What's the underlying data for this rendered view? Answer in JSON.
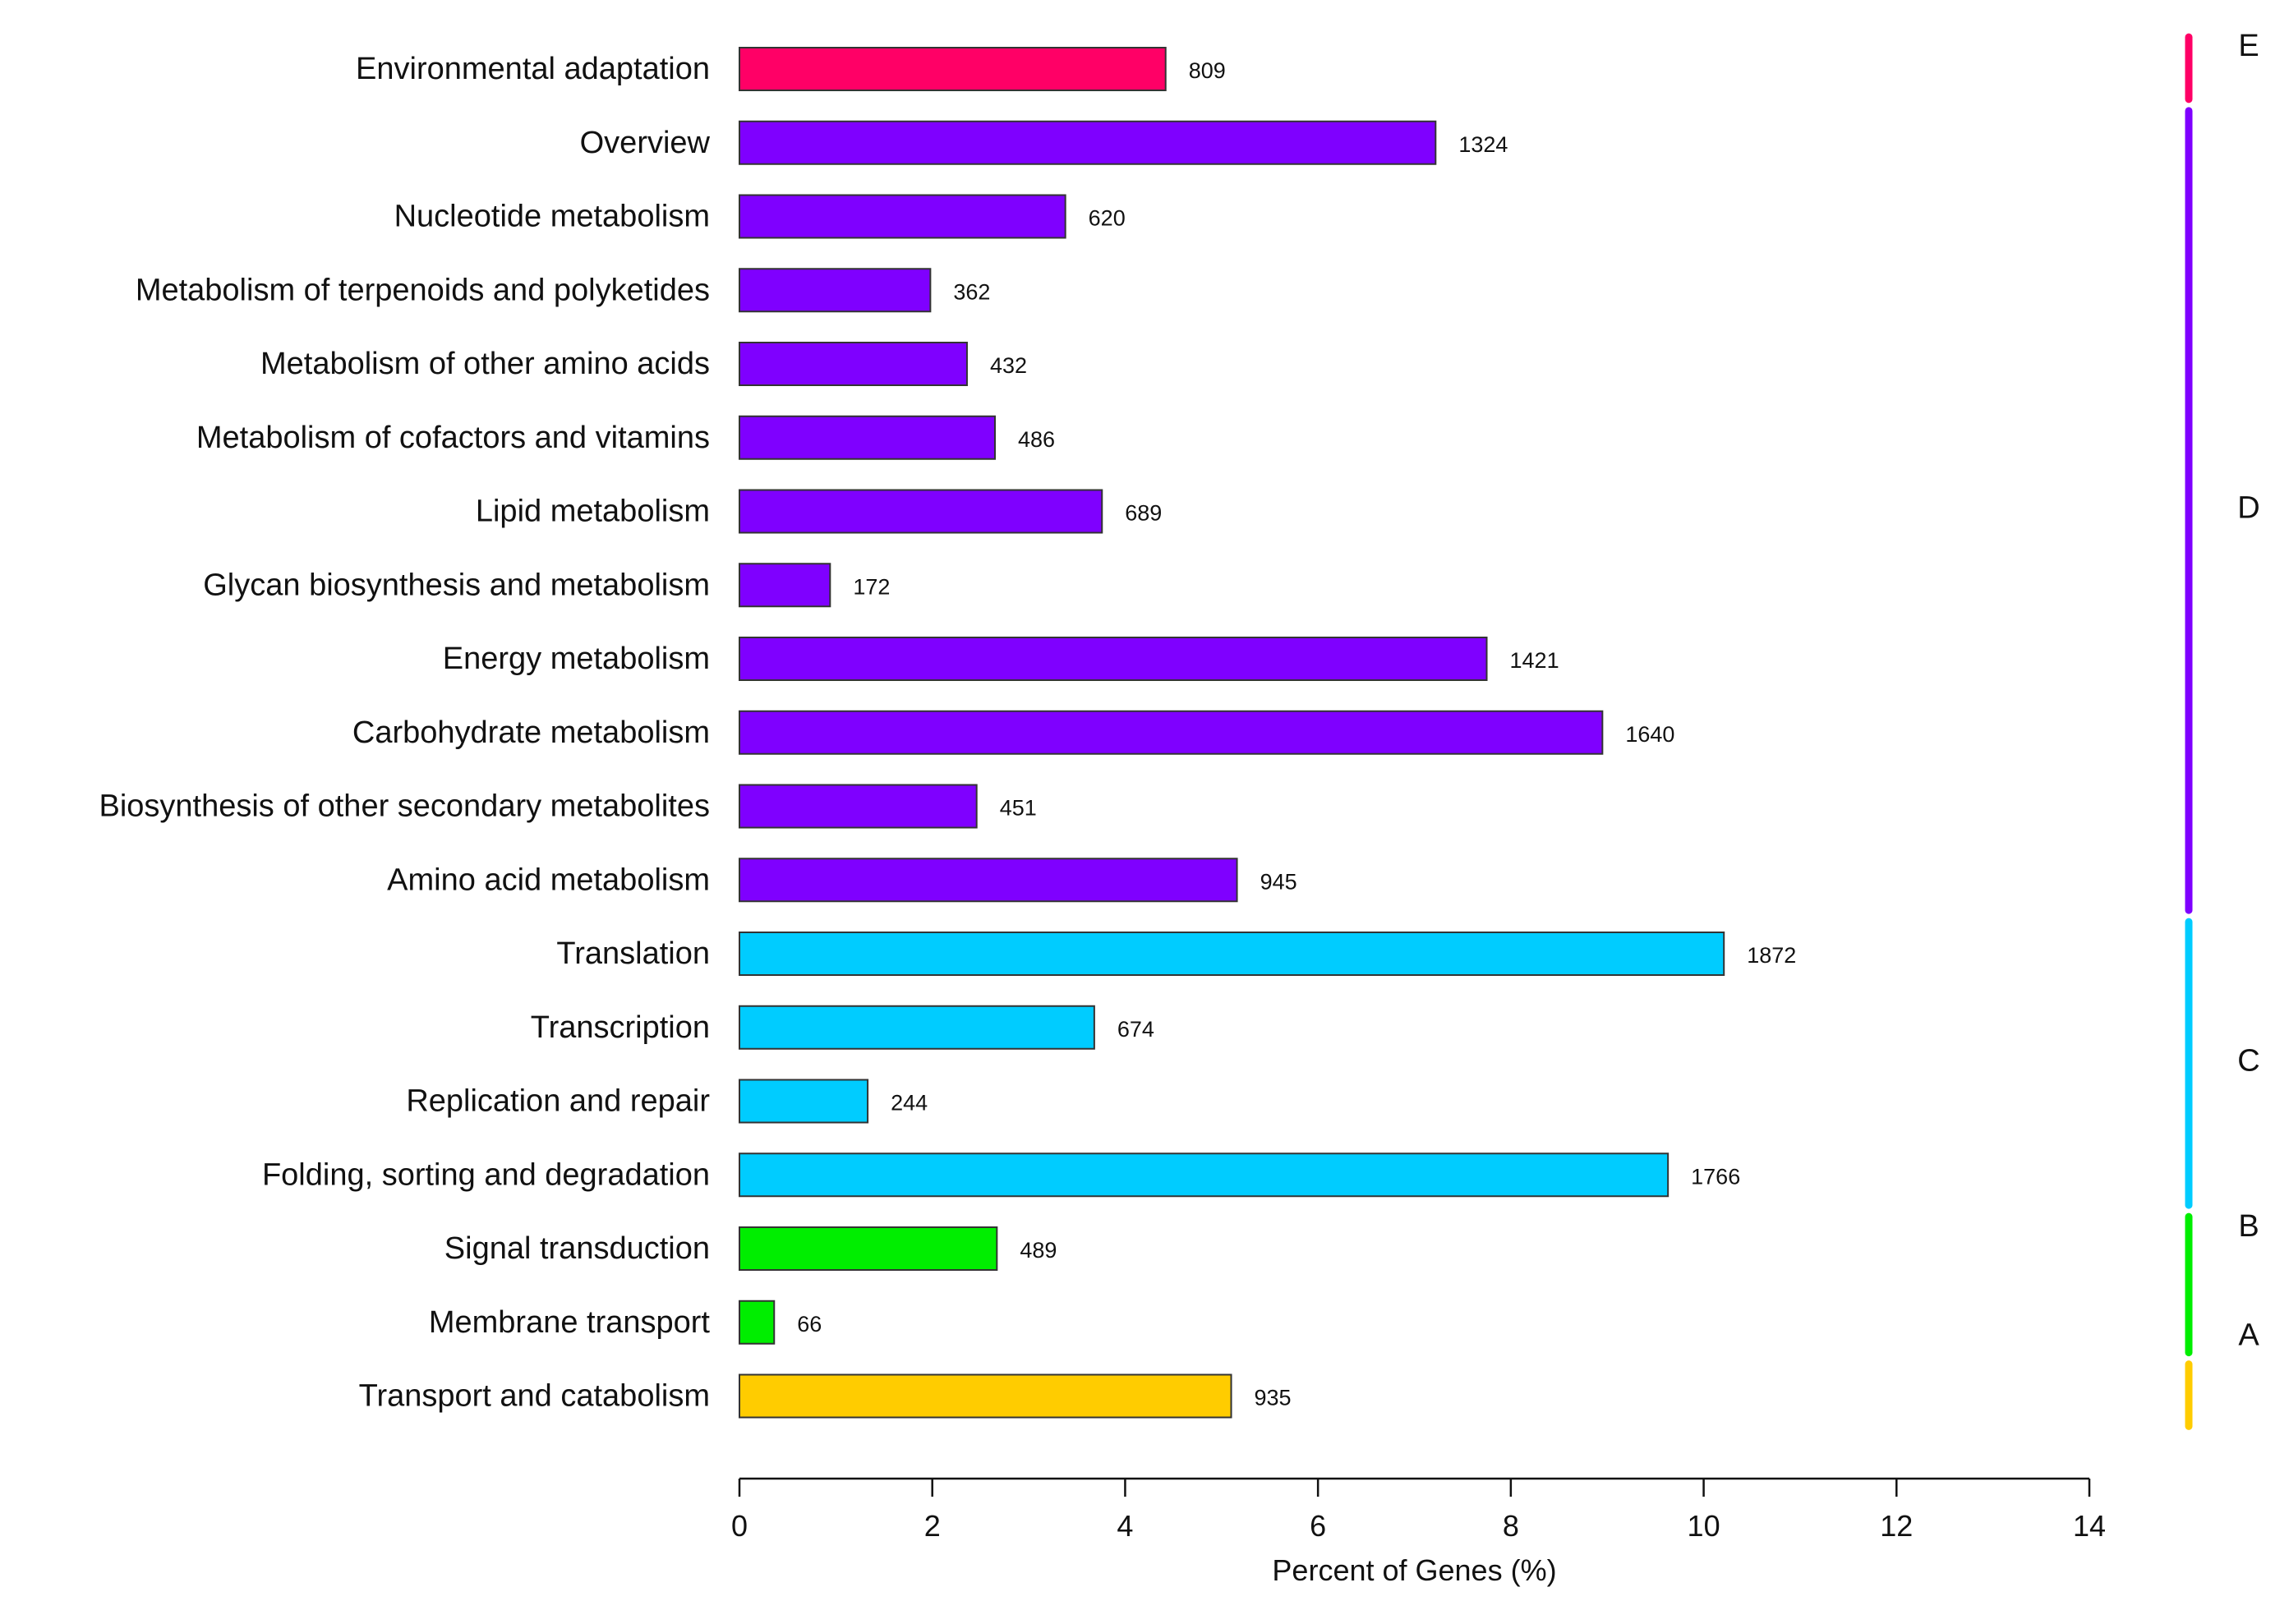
{
  "chart_data": {
    "type": "bar",
    "orientation": "horizontal",
    "title": "",
    "xlabel": "Percent of Genes (%)",
    "ylabel": "",
    "xlim": [
      0,
      14
    ],
    "xticks": [
      0,
      2,
      4,
      6,
      8,
      10,
      12,
      14
    ],
    "grid": false,
    "categories": [
      "Environmental adaptation",
      "Overview",
      "Nucleotide metabolism",
      "Metabolism of terpenoids and polyketides",
      "Metabolism of other amino acids",
      "Metabolism of cofactors and vitamins",
      "Lipid metabolism",
      "Glycan biosynthesis and metabolism",
      "Energy metabolism",
      "Carbohydrate metabolism",
      "Biosynthesis of other secondary metabolites",
      "Amino acid metabolism",
      "Translation",
      "Transcription",
      "Replication and repair",
      "Folding, sorting and degradation",
      "Signal transduction",
      "Membrane transport",
      "Transport and catabolism"
    ],
    "values": [
      4.42,
      7.22,
      3.38,
      1.98,
      2.36,
      2.65,
      3.76,
      0.94,
      7.75,
      8.95,
      2.46,
      5.16,
      10.21,
      3.68,
      1.33,
      9.63,
      2.67,
      0.36,
      5.1
    ],
    "counts": [
      "809",
      "1324",
      "620",
      "362",
      "432",
      "486",
      "689",
      "172",
      "1421",
      "1640",
      "451",
      "945",
      "1872",
      "674",
      "244",
      "1766",
      "489",
      "66",
      "935"
    ],
    "bar_groups": [
      "E",
      "D",
      "D",
      "D",
      "D",
      "D",
      "D",
      "D",
      "D",
      "D",
      "D",
      "D",
      "C",
      "C",
      "C",
      "C",
      "B",
      "B",
      "A"
    ],
    "groups": [
      {
        "letter": "E",
        "color": "#ff0066",
        "first": 0,
        "last": 0
      },
      {
        "letter": "D",
        "color": "#7f00ff",
        "first": 1,
        "last": 11
      },
      {
        "letter": "C",
        "color": "#00ccff",
        "first": 12,
        "last": 15
      },
      {
        "letter": "B",
        "color": "#00ee00",
        "first": 16,
        "last": 17
      },
      {
        "letter": "A",
        "color": "#ffcc00",
        "first": 18,
        "last": 18
      }
    ],
    "bar_edge_color": "#333333"
  }
}
